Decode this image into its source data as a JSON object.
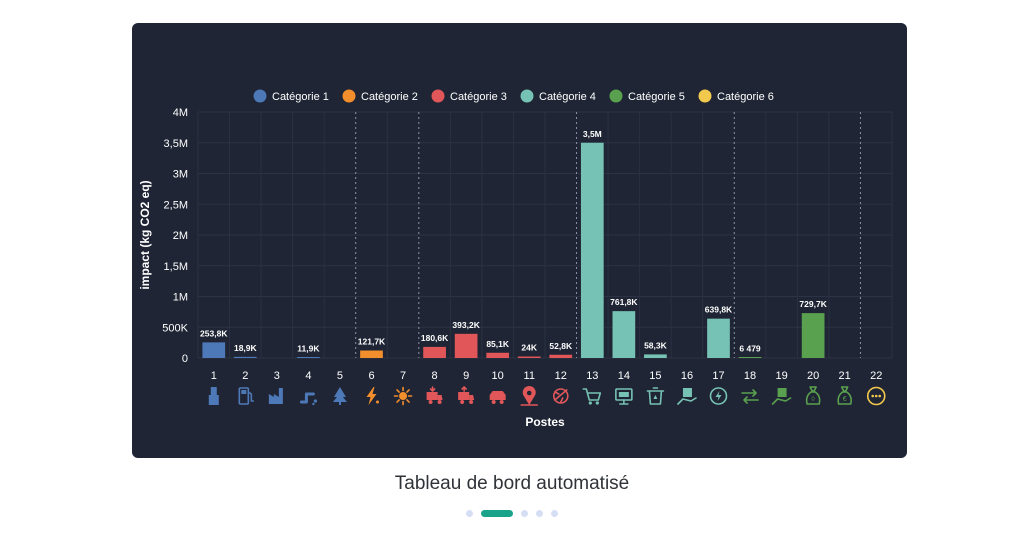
{
  "colors": {
    "card_bg": "#1f2534",
    "cat1": "#4e79b8",
    "cat2": "#f28e2b",
    "cat3": "#e15759",
    "cat4": "#76c2b4",
    "cat5": "#59a14f",
    "cat6": "#f2c94c",
    "text": "#ffffff",
    "dot_active": "#1aa38b",
    "dot": "#d6def3"
  },
  "chart_data": {
    "type": "bar",
    "ylabel": "impact (kg CO2 eq)",
    "xlabel": "Postes",
    "ylim": [
      0,
      4000000
    ],
    "y_ticks": [
      {
        "value": 0,
        "label": "0"
      },
      {
        "value": 500000,
        "label": "500K"
      },
      {
        "value": 1000000,
        "label": "1M"
      },
      {
        "value": 1500000,
        "label": "1,5M"
      },
      {
        "value": 2000000,
        "label": "2M"
      },
      {
        "value": 2500000,
        "label": "2,5M"
      },
      {
        "value": 3000000,
        "label": "3M"
      },
      {
        "value": 3500000,
        "label": "3,5M"
      },
      {
        "value": 4000000,
        "label": "4M"
      }
    ],
    "legend_position": "top",
    "legend": [
      {
        "name": "Catégorie 1",
        "color": "#4e79b8"
      },
      {
        "name": "Catégorie 2",
        "color": "#f28e2b"
      },
      {
        "name": "Catégorie 3",
        "color": "#e15759"
      },
      {
        "name": "Catégorie 4",
        "color": "#76c2b4"
      },
      {
        "name": "Catégorie 5",
        "color": "#59a14f"
      },
      {
        "name": "Catégorie 6",
        "color": "#f2c94c"
      }
    ],
    "group_separators_after": [
      5,
      7,
      12,
      17,
      21
    ],
    "categories": [
      {
        "poste": "1",
        "value": 253800,
        "label": "253,8K",
        "category": 1,
        "icon": "building-icon"
      },
      {
        "poste": "2",
        "value": 18900,
        "label": "18,9K",
        "category": 1,
        "icon": "fuel-pump-icon"
      },
      {
        "poste": "3",
        "value": 0,
        "label": "",
        "category": 1,
        "icon": "factory-icon"
      },
      {
        "poste": "4",
        "value": 11900,
        "label": "11,9K",
        "category": 1,
        "icon": "pipe-leak-icon"
      },
      {
        "poste": "5",
        "value": 0,
        "label": "",
        "category": 1,
        "icon": "tree-icon"
      },
      {
        "poste": "6",
        "value": 121700,
        "label": "121,7K",
        "category": 2,
        "icon": "lightning-icon"
      },
      {
        "poste": "7",
        "value": 0,
        "label": "",
        "category": 2,
        "icon": "sun-snowflake-icon"
      },
      {
        "poste": "8",
        "value": 180600,
        "label": "180,6K",
        "category": 3,
        "icon": "truck-in-icon"
      },
      {
        "poste": "9",
        "value": 393200,
        "label": "393,2K",
        "category": 3,
        "icon": "truck-out-icon"
      },
      {
        "poste": "10",
        "value": 85100,
        "label": "85,1K",
        "category": 3,
        "icon": "commute-car-icon"
      },
      {
        "poste": "11",
        "value": 24000,
        "label": "24K",
        "category": 3,
        "icon": "location-pin-icon"
      },
      {
        "poste": "12",
        "value": 52800,
        "label": "52,8K",
        "category": 3,
        "icon": "business-travel-icon"
      },
      {
        "poste": "13",
        "value": 3500000,
        "label": "3,5M",
        "category": 4,
        "icon": "shopping-cart-icon"
      },
      {
        "poste": "14",
        "value": 761800,
        "label": "761,8K",
        "category": 4,
        "icon": "computer-icon"
      },
      {
        "poste": "15",
        "value": 58300,
        "label": "58,3K",
        "category": 4,
        "icon": "trash-recycle-icon"
      },
      {
        "poste": "16",
        "value": 0,
        "label": "",
        "category": 4,
        "icon": "hand-building-icon"
      },
      {
        "poste": "17",
        "value": 639800,
        "label": "639,8K",
        "category": 4,
        "icon": "power-cycle-icon"
      },
      {
        "poste": "18",
        "value": 6479,
        "label": "6 479",
        "category": 5,
        "icon": "arrows-transfer-icon"
      },
      {
        "poste": "19",
        "value": 0,
        "label": "",
        "category": 5,
        "icon": "hand-box-icon"
      },
      {
        "poste": "20",
        "value": 729700,
        "label": "729,7K",
        "category": 5,
        "icon": "money-bag-icon"
      },
      {
        "poste": "21",
        "value": 0,
        "label": "",
        "category": 5,
        "icon": "euro-bag-icon"
      },
      {
        "poste": "22",
        "value": 0,
        "label": "",
        "category": 6,
        "icon": "more-dots-icon"
      }
    ]
  },
  "caption": "Tableau de bord automatisé",
  "carousel": {
    "count": 5,
    "active": 1
  }
}
